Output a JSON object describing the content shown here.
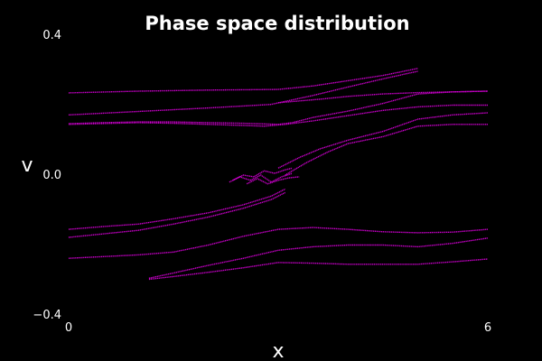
{
  "chart_data": {
    "type": "scatter",
    "title": "Phase space distribution",
    "xlabel": "x",
    "ylabel": "v",
    "xlim": [
      0,
      6
    ],
    "ylim": [
      -0.4,
      0.4
    ],
    "x_ticks": [
      {
        "value": 0,
        "label": "0"
      },
      {
        "value": 6,
        "label": "6"
      }
    ],
    "y_ticks": [
      {
        "value": 0.4,
        "label": "0.4"
      },
      {
        "value": 0.0,
        "label": "0.0"
      },
      {
        "value": -0.4,
        "label": "−0.4"
      }
    ],
    "grid": false,
    "legend": "none",
    "background": "#000000",
    "color": "#cc00cc",
    "series": [
      {
        "x": [
          0,
          1,
          2,
          3,
          3.5,
          4,
          4.5,
          5
        ],
        "y": [
          0.235,
          0.24,
          0.243,
          0.245,
          0.255,
          0.27,
          0.285,
          0.305
        ]
      },
      {
        "x": [
          0,
          1,
          2,
          2.9,
          3.5,
          4,
          4.5,
          5
        ],
        "y": [
          0.172,
          0.182,
          0.192,
          0.202,
          0.228,
          0.252,
          0.275,
          0.297
        ]
      },
      {
        "x": [
          3,
          3.6,
          4,
          4.5,
          5,
          5.5,
          6
        ],
        "y": [
          0.207,
          0.217,
          0.225,
          0.232,
          0.236,
          0.238,
          0.24
        ]
      },
      {
        "x": [
          0,
          1,
          1.5,
          2,
          2.5,
          2.8,
          3.1,
          3.5,
          4,
          4.5,
          5,
          5.5,
          6
        ],
        "y": [
          0.145,
          0.15,
          0.148,
          0.145,
          0.142,
          0.14,
          0.145,
          0.155,
          0.17,
          0.185,
          0.195,
          0.2,
          0.2
        ]
      },
      {
        "x": [
          0,
          0.5,
          1,
          1.5,
          2,
          2.5,
          3,
          3.2,
          3.5,
          4,
          4.5,
          5,
          5.5,
          6
        ],
        "y": [
          0.147,
          0.15,
          0.152,
          0.152,
          0.15,
          0.148,
          0.145,
          0.15,
          0.165,
          0.183,
          0.205,
          0.232,
          0.238,
          0.24
        ]
      },
      {
        "x": [
          3,
          3.3,
          3.6,
          4,
          4.5,
          5,
          5.5,
          6
        ],
        "y": [
          0.02,
          0.05,
          0.075,
          0.1,
          0.125,
          0.16,
          0.172,
          0.178
        ]
      },
      {
        "x": [
          3.1,
          3.4,
          3.7,
          4,
          4.5,
          5,
          5.5,
          6
        ],
        "y": [
          0.0,
          0.035,
          0.065,
          0.09,
          0.11,
          0.14,
          0.145,
          0.145
        ]
      },
      {
        "x": [
          2.3,
          2.45,
          2.6,
          2.75,
          2.9,
          3.05,
          3.2
        ],
        "y": [
          -0.02,
          -0.005,
          -0.015,
          0.0,
          -0.02,
          -0.005,
          0.005
        ]
      },
      {
        "x": [
          2.35,
          2.5,
          2.65,
          2.8,
          2.95,
          3.1,
          3.2
        ],
        "y": [
          -0.015,
          0.0,
          -0.005,
          0.012,
          0.005,
          0.015,
          0.02
        ]
      },
      {
        "x": [
          2.55,
          2.7,
          2.85,
          3.0,
          3.15,
          3.3
        ],
        "y": [
          -0.025,
          -0.01,
          -0.025,
          -0.015,
          -0.008,
          -0.005
        ]
      },
      {
        "x": [
          0,
          0.5,
          1,
          1.5,
          2,
          2.5,
          2.9,
          3.1
        ],
        "y": [
          -0.155,
          -0.147,
          -0.14,
          -0.125,
          -0.108,
          -0.085,
          -0.06,
          -0.04
        ]
      },
      {
        "x": [
          0,
          0.5,
          1,
          1.5,
          2,
          2.5,
          2.9,
          3.1
        ],
        "y": [
          -0.178,
          -0.168,
          -0.158,
          -0.14,
          -0.12,
          -0.095,
          -0.07,
          -0.05
        ]
      },
      {
        "x": [
          0,
          1,
          1.5,
          2,
          2.5,
          3,
          3.5,
          4,
          4.5,
          5,
          5.5,
          6
        ],
        "y": [
          -0.238,
          -0.228,
          -0.22,
          -0.2,
          -0.175,
          -0.155,
          -0.15,
          -0.155,
          -0.162,
          -0.165,
          -0.163,
          -0.155
        ]
      },
      {
        "x": [
          1.15,
          1.5,
          2,
          2.5,
          3,
          3.5,
          4,
          4.5,
          5,
          5.5,
          6
        ],
        "y": [
          -0.295,
          -0.28,
          -0.258,
          -0.238,
          -0.215,
          -0.205,
          -0.2,
          -0.2,
          -0.205,
          -0.195,
          -0.18
        ]
      },
      {
        "x": [
          1.15,
          1.5,
          2,
          2.5,
          3,
          3.5,
          4,
          4.5,
          5,
          5.5,
          6
        ],
        "y": [
          -0.298,
          -0.29,
          -0.278,
          -0.265,
          -0.25,
          -0.252,
          -0.255,
          -0.255,
          -0.255,
          -0.248,
          -0.24
        ]
      }
    ]
  }
}
